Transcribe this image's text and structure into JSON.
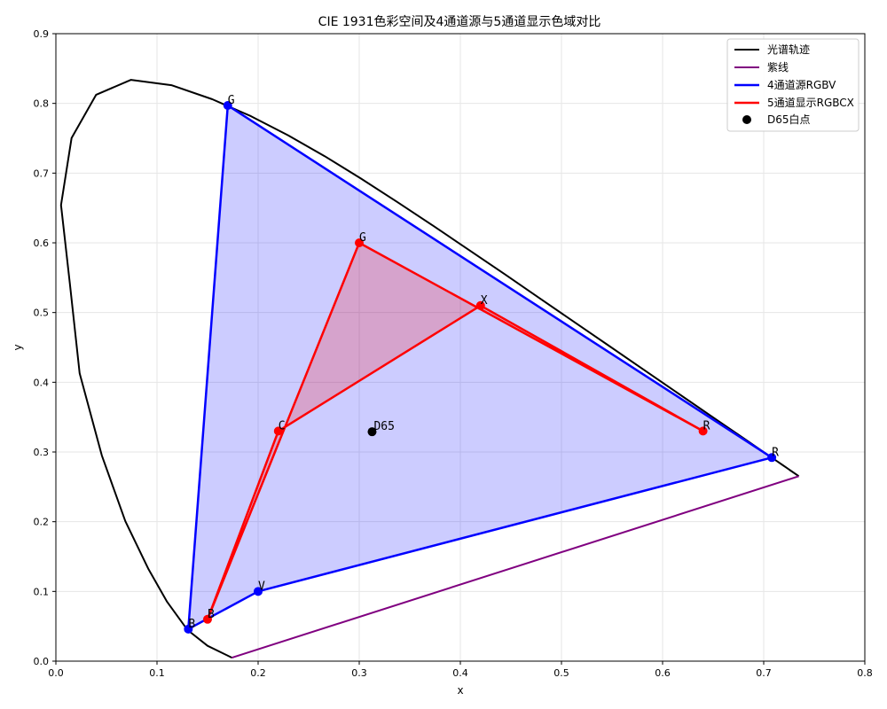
{
  "chart_data": {
    "type": "line",
    "title": "CIE 1931色彩空间及4通道源与5通道显示色域对比",
    "xlabel": "x",
    "ylabel": "y",
    "xlim": [
      0,
      0.8
    ],
    "ylim": [
      0,
      0.9
    ],
    "xticks": [
      "0.0",
      "0.1",
      "0.2",
      "0.3",
      "0.4",
      "0.5",
      "0.6",
      "0.7",
      "0.8"
    ],
    "yticks": [
      "0.0",
      "0.1",
      "0.2",
      "0.3",
      "0.4",
      "0.5",
      "0.6",
      "0.7",
      "0.8",
      "0.9"
    ],
    "grid": true,
    "legend_position": "top-right",
    "spectral_locus": {
      "name": "光谱轨迹",
      "color": "#000000",
      "points": [
        [
          0.1741,
          0.005
        ],
        [
          0.15,
          0.022
        ],
        [
          0.13,
          0.045
        ],
        [
          0.11,
          0.085
        ],
        [
          0.0913,
          0.1327
        ],
        [
          0.0687,
          0.2007
        ],
        [
          0.0454,
          0.295
        ],
        [
          0.0235,
          0.4127
        ],
        [
          0.0139,
          0.5411
        ],
        [
          0.0051,
          0.6542
        ],
        [
          0.0155,
          0.7504
        ],
        [
          0.0398,
          0.8124
        ],
        [
          0.0743,
          0.8338
        ],
        [
          0.1142,
          0.8262
        ],
        [
          0.1547,
          0.8059
        ],
        [
          0.1929,
          0.7816
        ],
        [
          0.2296,
          0.7543
        ],
        [
          0.2658,
          0.7243
        ],
        [
          0.3016,
          0.6923
        ],
        [
          0.3373,
          0.6589
        ],
        [
          0.3731,
          0.6245
        ],
        [
          0.4087,
          0.5896
        ],
        [
          0.4441,
          0.5547
        ],
        [
          0.4788,
          0.5202
        ],
        [
          0.5125,
          0.4866
        ],
        [
          0.5448,
          0.4544
        ],
        [
          0.5752,
          0.4242
        ],
        [
          0.6029,
          0.3965
        ],
        [
          0.627,
          0.3725
        ],
        [
          0.6482,
          0.3514
        ],
        [
          0.6658,
          0.334
        ],
        [
          0.6801,
          0.3197
        ],
        [
          0.6915,
          0.3083
        ],
        [
          0.7006,
          0.2993
        ],
        [
          0.7079,
          0.292
        ],
        [
          0.714,
          0.2859
        ],
        [
          0.719,
          0.2809
        ],
        [
          0.723,
          0.277
        ],
        [
          0.726,
          0.274
        ],
        [
          0.7347,
          0.2653
        ]
      ]
    },
    "purple_line": {
      "name": "紫线",
      "color": "#800080",
      "points": [
        [
          0.7347,
          0.2653
        ],
        [
          0.1741,
          0.005
        ]
      ]
    },
    "source_gamut": {
      "name": "4通道源RGBV",
      "color": "#0000ff",
      "fill": "#0000ff",
      "fill_opacity": 0.2,
      "points": [
        {
          "label": "R",
          "x": 0.708,
          "y": 0.292
        },
        {
          "label": "G",
          "x": 0.17,
          "y": 0.797
        },
        {
          "label": "B",
          "x": 0.131,
          "y": 0.046
        },
        {
          "label": "V",
          "x": 0.2,
          "y": 0.1
        }
      ]
    },
    "display_gamut": {
      "name": "5通道显示RGBCX",
      "color": "#ff0000",
      "fill": "#ff0000",
      "fill_opacity": 0.2,
      "points": [
        {
          "label": "R",
          "x": 0.64,
          "y": 0.33
        },
        {
          "label": "G",
          "x": 0.3,
          "y": 0.6
        },
        {
          "label": "B",
          "x": 0.15,
          "y": 0.06
        },
        {
          "label": "C",
          "x": 0.22,
          "y": 0.33
        },
        {
          "label": "X",
          "x": 0.42,
          "y": 0.51
        }
      ]
    },
    "white_point": {
      "name": "D65白点",
      "label": "D65",
      "color": "#000000",
      "x": 0.3127,
      "y": 0.329
    }
  }
}
